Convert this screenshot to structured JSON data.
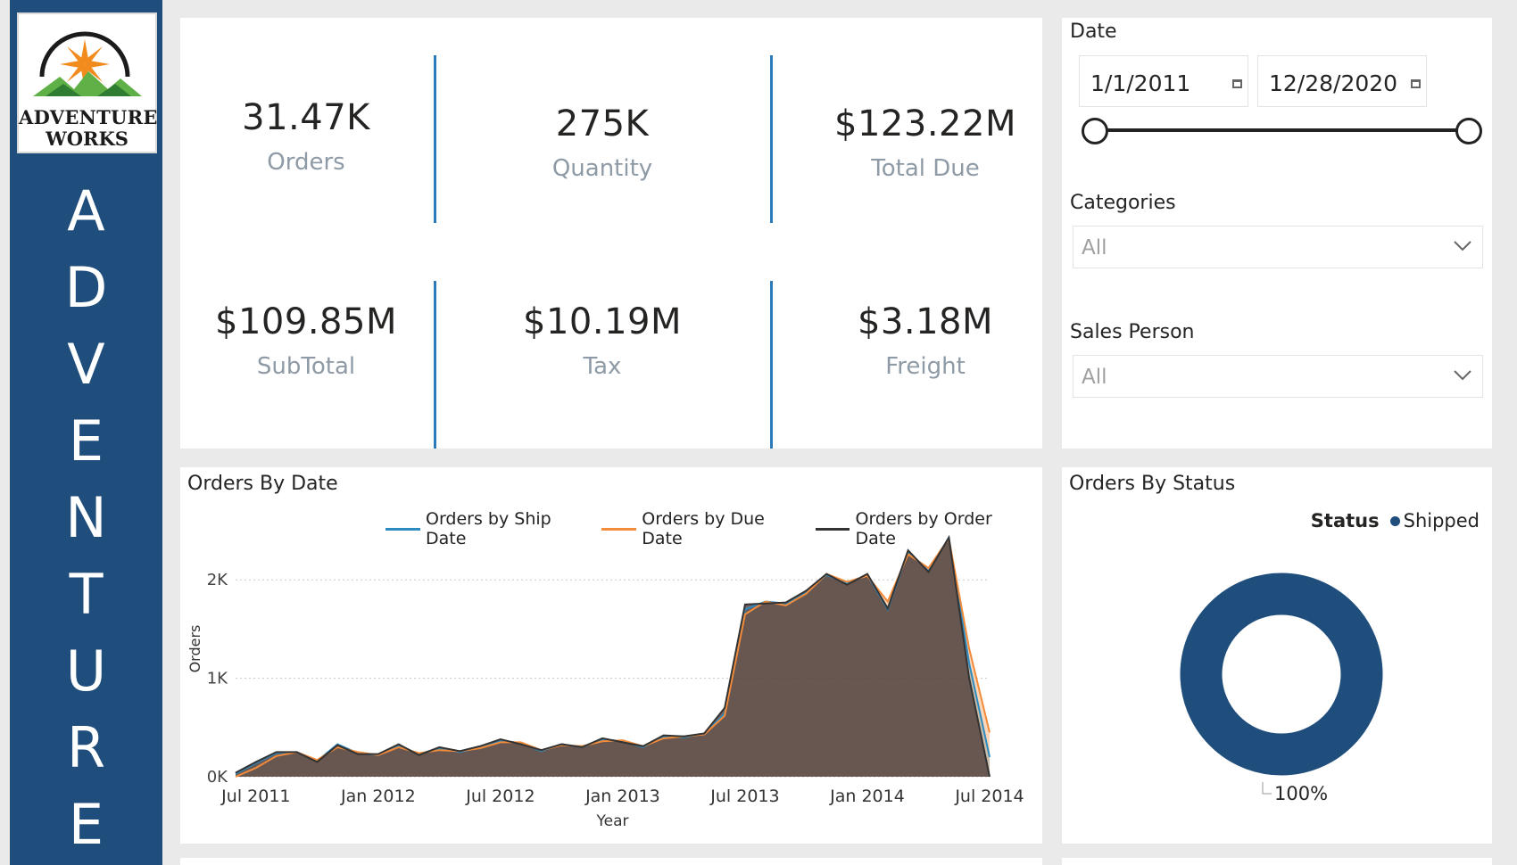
{
  "sidebar": {
    "logo": {
      "line1": "ADVENTURE",
      "line2": "WORKS"
    },
    "vertical_title": [
      "A",
      "D",
      "V",
      "E",
      "N",
      "T",
      "U",
      "R",
      "E"
    ]
  },
  "kpis": [
    {
      "value": "31.47K",
      "label": "Orders"
    },
    {
      "value": "275K",
      "label": "Quantity"
    },
    {
      "value": "$123.22M",
      "label": "Total Due"
    },
    {
      "value": "$109.85M",
      "label": "SubTotal"
    },
    {
      "value": "$10.19M",
      "label": "Tax"
    },
    {
      "value": "$3.18M",
      "label": "Freight"
    }
  ],
  "filters": {
    "date": {
      "title": "Date",
      "start": "1/1/2011",
      "end": "12/28/2020"
    },
    "categories": {
      "title": "Categories",
      "value": "All"
    },
    "sales_person": {
      "title": "Sales Person",
      "value": "All"
    }
  },
  "chart_data": [
    {
      "type": "area",
      "title": "Orders By Date",
      "xlabel": "Year",
      "ylabel": "Orders",
      "ylim": [
        0,
        2600
      ],
      "yticks": [
        "0K",
        "1K",
        "2K"
      ],
      "xticks": [
        "Jul 2011",
        "Jan 2012",
        "Jul 2012",
        "Jan 2013",
        "Jul 2013",
        "Jan 2014",
        "Jul 2014"
      ],
      "grid": true,
      "legend_position": "top-right",
      "x": [
        "Jun 2011",
        "Jul 2011",
        "Aug 2011",
        "Sep 2011",
        "Oct 2011",
        "Nov 2011",
        "Dec 2011",
        "Jan 2012",
        "Feb 2012",
        "Mar 2012",
        "Apr 2012",
        "May 2012",
        "Jun 2012",
        "Jul 2012",
        "Aug 2012",
        "Sep 2012",
        "Oct 2012",
        "Nov 2012",
        "Dec 2012",
        "Jan 2013",
        "Feb 2013",
        "Mar 2013",
        "Apr 2013",
        "May 2013",
        "Jun 2013",
        "Jul 2013",
        "Aug 2013",
        "Sep 2013",
        "Oct 2013",
        "Nov 2013",
        "Dec 2013",
        "Jan 2014",
        "Feb 2014",
        "Mar 2014",
        "Apr 2014",
        "May 2014",
        "Jun 2014",
        "Jul 2014"
      ],
      "series": [
        {
          "name": "Orders by Ship Date",
          "color": "#2e8bc0",
          "values": [
            30,
            140,
            240,
            250,
            160,
            330,
            240,
            220,
            320,
            230,
            290,
            250,
            300,
            370,
            340,
            260,
            330,
            300,
            380,
            360,
            300,
            410,
            400,
            440,
            640,
            1700,
            1780,
            1760,
            1880,
            2050,
            1960,
            2050,
            1700,
            2290,
            2090,
            2430,
            1150,
            200
          ]
        },
        {
          "name": "Orders by Due Date",
          "color": "#f28b3a",
          "values": [
            0,
            90,
            210,
            250,
            170,
            300,
            250,
            220,
            300,
            240,
            270,
            260,
            290,
            350,
            350,
            270,
            320,
            310,
            360,
            370,
            310,
            390,
            410,
            430,
            620,
            1650,
            1780,
            1740,
            1860,
            2060,
            1980,
            2040,
            1780,
            2260,
            2120,
            2420,
            1300,
            450
          ]
        },
        {
          "name": "Orders by Order Date",
          "color": "#333333",
          "values": [
            40,
            150,
            250,
            250,
            150,
            320,
            230,
            230,
            330,
            220,
            300,
            260,
            310,
            380,
            330,
            270,
            330,
            300,
            390,
            350,
            310,
            420,
            410,
            440,
            700,
            1750,
            1760,
            1770,
            1890,
            2060,
            1950,
            2060,
            1710,
            2300,
            2080,
            2430,
            1000,
            0
          ]
        }
      ]
    },
    {
      "type": "pie",
      "title": "Orders By Status",
      "legend_title": "Status",
      "legend_position": "top-right",
      "slices": [
        {
          "label": "Shipped",
          "value": 100,
          "color": "#1f4e7d"
        }
      ],
      "data_label": "100%"
    }
  ]
}
